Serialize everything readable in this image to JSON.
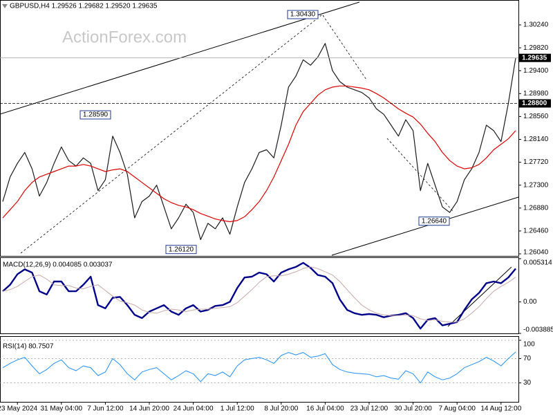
{
  "chart_data": [
    {
      "type": "line",
      "title": "GBPUSD,H4  1.29526 1.29682 1.29520 1.29635",
      "watermark": "ActionForex.com",
      "ylim": [
        1.26002,
        1.30697
      ],
      "yticks": [
        {
          "value": 1.3024,
          "label": "1.30240"
        },
        {
          "value": 1.2982,
          "label": "1.29820"
        },
        {
          "value": 1.294,
          "label": "1.29400"
        },
        {
          "value": 1.2898,
          "label": "1.28980"
        },
        {
          "value": 1.2856,
          "label": "1.28560"
        },
        {
          "value": 1.2814,
          "label": "1.28140"
        },
        {
          "value": 1.2772,
          "label": "1.27720"
        },
        {
          "value": 1.273,
          "label": "1.27300"
        },
        {
          "value": 1.2688,
          "label": "1.26880"
        },
        {
          "value": 1.2646,
          "label": "1.26460"
        },
        {
          "value": 1.2604,
          "label": "1.26040"
        }
      ],
      "grid": false,
      "series": [
        {
          "color": "#1a1a1a",
          "values": [
            1.27,
            1.2745,
            1.277,
            1.279,
            1.276,
            1.271,
            1.2735,
            1.277,
            1.28,
            1.2775,
            1.2765,
            1.278,
            1.277,
            1.272,
            1.274,
            1.282,
            1.279,
            1.275,
            1.267,
            1.27,
            1.271,
            1.273,
            1.269,
            1.265,
            1.267,
            1.2695,
            1.268,
            1.263,
            1.266,
            1.265,
            1.267,
            1.264,
            1.269,
            1.2735,
            1.276,
            1.279,
            1.2795,
            1.278,
            1.284,
            1.291,
            1.293,
            1.296,
            1.295,
            1.2965,
            1.299,
            1.294,
            1.292,
            1.291,
            1.2905,
            1.29,
            1.289,
            1.287,
            1.286,
            1.284,
            1.282,
            1.285,
            1.283,
            1.272,
            1.277,
            1.273,
            1.269,
            1.268,
            1.27,
            1.274,
            1.276,
            1.279,
            1.284,
            1.283,
            1.281,
            1.288,
            1.29635
          ]
        },
        {
          "color": "#e00000",
          "values": [
            1.267,
            1.2685,
            1.27,
            1.272,
            1.2735,
            1.2745,
            1.275,
            1.2755,
            1.276,
            1.2765,
            1.2765,
            1.2768,
            1.2765,
            1.276,
            1.2755,
            1.2758,
            1.276,
            1.2755,
            1.2745,
            1.2735,
            1.2725,
            1.2715,
            1.2705,
            1.2698,
            1.2693,
            1.269,
            1.2685,
            1.2678,
            1.2673,
            1.2668,
            1.2665,
            1.2663,
            1.2665,
            1.2672,
            1.2685,
            1.27,
            1.272,
            1.2745,
            1.2775,
            1.2805,
            1.284,
            1.2865,
            1.288,
            1.2895,
            1.2905,
            1.291,
            1.2912,
            1.2912,
            1.291,
            1.2908,
            1.2905,
            1.2898,
            1.289,
            1.288,
            1.287,
            1.2862,
            1.2855,
            1.2842,
            1.2825,
            1.281,
            1.279,
            1.2775,
            1.2765,
            1.276,
            1.2762,
            1.2768,
            1.278,
            1.2795,
            1.2805,
            1.2815,
            1.283
          ]
        }
      ],
      "levels": [
        {
          "value": 1.29635,
          "label": "1.29635"
        },
        {
          "value": 1.288,
          "label": "1.28800"
        }
      ],
      "annotations": [
        {
          "value": 1.3043,
          "label": "1.30430"
        },
        {
          "value": 1.2859,
          "label": "1.28590"
        },
        {
          "value": 1.2612,
          "label": "1.26120"
        },
        {
          "value": 1.2664,
          "label": "1.26640"
        }
      ]
    },
    {
      "type": "line",
      "title": "MACD(12,26,9) 0.004085 0.003037",
      "ylim": [
        -0.003885,
        0.005314
      ],
      "yticks": [
        0.005314,
        {
          "value": 0,
          "label": "0.00"
        },
        -0.003885
      ],
      "grid": false,
      "series": [
        {
          "color": "#00008b",
          "values": [
            0.0013,
            0.0021,
            0.0034,
            0.004,
            0.0036,
            0.0013,
            0.0009,
            0.0025,
            0.0025,
            0.0013,
            0.0013,
            0.0021,
            0.0031,
            -0.0004,
            -0.0008,
            0.0005,
            0.0006,
            -0.0004,
            -0.0016,
            -0.002,
            -0.0012,
            -0.0008,
            -0.0004,
            -0.0012,
            -0.0016,
            -0.0008,
            -0.0004,
            -0.0012,
            -0.001,
            -0.0005,
            -0.0004,
            0.0,
            0.0017,
            0.003,
            0.0031,
            0.0036,
            0.0034,
            0.0025,
            0.0036,
            0.004,
            0.0043,
            0.0048,
            0.0042,
            0.0033,
            0.0031,
            0.0023,
            0.0003,
            -0.001,
            -0.0014,
            -0.0016,
            -0.0015,
            -0.0016,
            -0.0019,
            -0.0017,
            -0.0016,
            -0.0014,
            -0.002,
            -0.0033,
            -0.0022,
            -0.002,
            -0.0029,
            -0.0027,
            -0.0025,
            -0.001,
            0.0003,
            0.0011,
            0.0023,
            0.0025,
            0.0023,
            0.003,
            0.004085
          ]
        },
        {
          "color": "#c8a8a8",
          "values": [
            0.0013,
            0.0015,
            0.0019,
            0.0025,
            0.0031,
            0.0033,
            0.0028,
            0.0021,
            0.002,
            0.002,
            0.0017,
            0.0016,
            0.0019,
            0.0021,
            0.0014,
            0.0007,
            0.0001,
            -0.0001,
            -0.0004,
            -0.001,
            -0.0013,
            -0.0014,
            -0.0011,
            -0.0009,
            -0.001,
            -0.0012,
            -0.001,
            -0.0009,
            -0.0009,
            -0.0008,
            -0.0007,
            -0.0006,
            -0.0001,
            0.0007,
            0.0015,
            0.0024,
            0.0031,
            0.0032,
            0.0032,
            0.0034,
            0.0037,
            0.0041,
            0.0043,
            0.0041,
            0.0037,
            0.0033,
            0.0025,
            0.0015,
            0.0005,
            -0.0004,
            -0.001,
            -0.0014,
            -0.0016,
            -0.0017,
            -0.0017,
            -0.0016,
            -0.0017,
            -0.0021,
            -0.0023,
            -0.0022,
            -0.0024,
            -0.0025,
            -0.0025,
            -0.0021,
            -0.0014,
            -0.0006,
            0.0004,
            0.0013,
            0.0019,
            0.0024,
            0.003037
          ]
        }
      ]
    },
    {
      "type": "line",
      "title": "RSI(14) 80.7507",
      "ylim": [
        0,
        100
      ],
      "yticks": [
        30,
        70,
        100
      ],
      "grid": true,
      "series": [
        {
          "color": "#1e90ff",
          "values": [
            55,
            62,
            68,
            72,
            58,
            45,
            52,
            62,
            68,
            55,
            50,
            58,
            55,
            42,
            48,
            70,
            60,
            45,
            35,
            48,
            52,
            55,
            45,
            35,
            42,
            50,
            45,
            32,
            45,
            42,
            48,
            40,
            58,
            68,
            70,
            72,
            68,
            62,
            75,
            80,
            76,
            80,
            72,
            74,
            78,
            60,
            52,
            48,
            46,
            45,
            44,
            40,
            42,
            38,
            36,
            50,
            45,
            30,
            48,
            40,
            35,
            38,
            45,
            55,
            60,
            65,
            72,
            66,
            58,
            70,
            80.7507
          ]
        }
      ],
      "categories": [
        null,
        null,
        "23 May 2024",
        null,
        null,
        null,
        null,
        null,
        "31 May 04:00",
        null,
        null,
        null,
        null,
        null,
        "7 Jun 12:00",
        null,
        null,
        null,
        null,
        null,
        "14 Jun 20:00",
        null,
        null,
        null,
        null,
        null,
        "24 Jun 04:00",
        null,
        null,
        null,
        null,
        null,
        "1 Jul 12:00",
        null,
        null,
        null,
        null,
        null,
        "8 Jul 20:00",
        null,
        null,
        null,
        null,
        null,
        "16 Jul 04:00",
        null,
        null,
        null,
        null,
        null,
        "23 Jul 12:00",
        null,
        null,
        null,
        null,
        null,
        "30 Jul 20:00",
        null,
        null,
        null,
        null,
        null,
        "7 Aug 04:00",
        null,
        null,
        null,
        null,
        null,
        "14 Aug 12:00",
        null,
        null
      ]
    }
  ]
}
